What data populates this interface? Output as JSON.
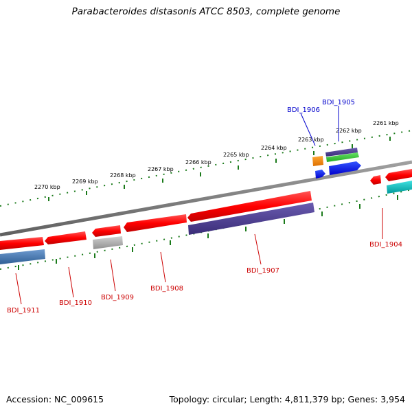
{
  "title": "Parabacteroides distasonis ATCC 8503, complete genome",
  "footer": {
    "accession": "Accession: NC_009615",
    "stats": "Topology: circular; Length: 4,811,379 bp; Genes: 3,954"
  },
  "scale_labels": [
    "2261 kbp",
    "2262 kbp",
    "2263 kbp",
    "2264 kbp",
    "2265 kbp",
    "2266 kbp",
    "2267 kbp",
    "2268 kbp",
    "2269 kbp",
    "2270 kbp"
  ],
  "genes": {
    "BDI_1904": "BDI_1904",
    "BDI_1905": "BDI_1905",
    "BDI_1906": "BDI_1906",
    "BDI_1907": "BDI_1907",
    "BDI_1908": "BDI_1908",
    "BDI_1909": "BDI_1909",
    "BDI_1910": "BDI_1910",
    "BDI_1911": "BDI_1911"
  },
  "colors": {
    "backbone": "#808080",
    "ticks": "#1a7a1a",
    "gene_forward_label": "#0000cc",
    "gene_reverse_label": "#cc0000",
    "cds": "#ff1a1a",
    "feature_purple": "#4b3d8c",
    "feature_blue": "#0000ff",
    "feature_orange": "#ff8c00",
    "feature_green": "#33cc33",
    "feature_steel": "#4a7fb5",
    "feature_gray": "#b0b0b0",
    "feature_cyan": "#00c0c0"
  }
}
